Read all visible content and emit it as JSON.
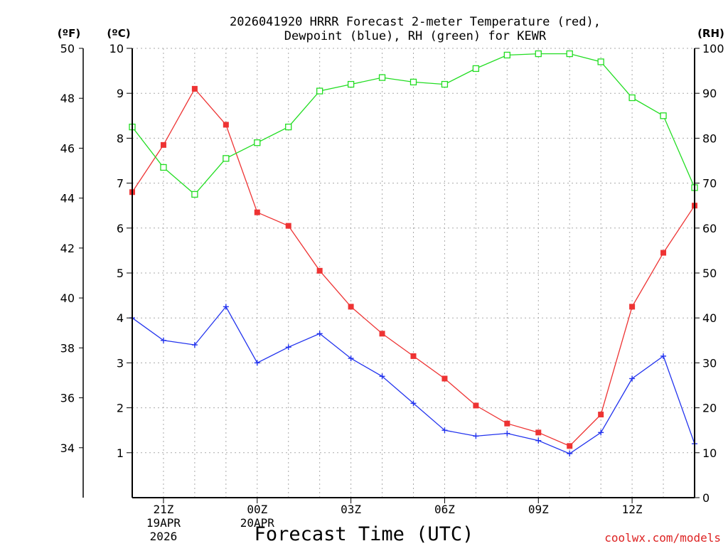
{
  "chart_data": {
    "type": "line",
    "title_line1": "2026041920 HRRR Forecast 2-meter Temperature (red),",
    "title_line2": "Dewpoint (blue), RH (green) for KEWR",
    "xlabel": "Forecast Time (UTC)",
    "watermark": "coolwx.com/models",
    "left_axis_f": {
      "label": "(ºF)",
      "ticks": [
        34,
        36,
        38,
        40,
        42,
        44,
        46,
        48,
        50
      ],
      "tick_labels": [
        "34",
        "36",
        "38",
        "40",
        "42",
        "44",
        "46",
        "48",
        "50"
      ]
    },
    "left_axis_c": {
      "label": "(ºC)",
      "range": [
        0,
        10
      ],
      "ticks": [
        1,
        2,
        3,
        4,
        5,
        6,
        7,
        8,
        9,
        10
      ],
      "tick_labels": [
        "1",
        "2",
        "3",
        "4",
        "5",
        "6",
        "7",
        "8",
        "9",
        "10"
      ]
    },
    "right_axis_rh": {
      "label": "(RH)",
      "range": [
        0,
        100
      ],
      "ticks": [
        0,
        10,
        20,
        30,
        40,
        50,
        60,
        70,
        80,
        90,
        100
      ],
      "tick_labels": [
        "0",
        "10",
        "20",
        "30",
        "40",
        "50",
        "60",
        "70",
        "80",
        "90",
        "100"
      ]
    },
    "x_range": [
      0,
      18
    ],
    "x_hours": [
      0,
      1,
      2,
      3,
      4,
      5,
      6,
      7,
      8,
      9,
      10,
      11,
      12,
      13,
      14,
      15,
      16,
      17,
      18
    ],
    "x_ticks": [
      {
        "x": 1,
        "label": "21Z",
        "date": "19APR",
        "year": "2026"
      },
      {
        "x": 4,
        "label": "00Z",
        "date": "20APR",
        "year": ""
      },
      {
        "x": 7,
        "label": "03Z",
        "date": "",
        "year": ""
      },
      {
        "x": 10,
        "label": "06Z",
        "date": "",
        "year": ""
      },
      {
        "x": 13,
        "label": "09Z",
        "date": "",
        "year": ""
      },
      {
        "x": 16,
        "label": "12Z",
        "date": "",
        "year": ""
      }
    ],
    "series": [
      {
        "name": "Temperature",
        "axis": "c",
        "color": "#ee3333",
        "marker": "filled-square",
        "values": [
          6.8,
          7.85,
          9.1,
          8.3,
          6.35,
          6.05,
          5.05,
          4.25,
          3.65,
          3.15,
          2.65,
          2.05,
          1.65,
          1.45,
          1.15,
          1.85,
          4.25,
          5.45,
          6.5
        ]
      },
      {
        "name": "Dewpoint",
        "axis": "c",
        "color": "#2233ee",
        "marker": "plus",
        "values": [
          4.0,
          3.5,
          3.4,
          4.25,
          3.0,
          3.35,
          3.65,
          3.1,
          2.7,
          2.1,
          1.5,
          1.37,
          1.43,
          1.27,
          0.98,
          1.45,
          2.65,
          3.15,
          1.2
        ]
      },
      {
        "name": "RH",
        "axis": "rh",
        "color": "#22dd22",
        "marker": "open-square",
        "values": [
          82.5,
          73.5,
          67.5,
          75.5,
          79,
          82.5,
          90.5,
          92,
          93.5,
          92.5,
          92,
          95.5,
          98.5,
          98.8,
          98.8,
          97,
          89,
          85,
          69
        ]
      }
    ]
  }
}
